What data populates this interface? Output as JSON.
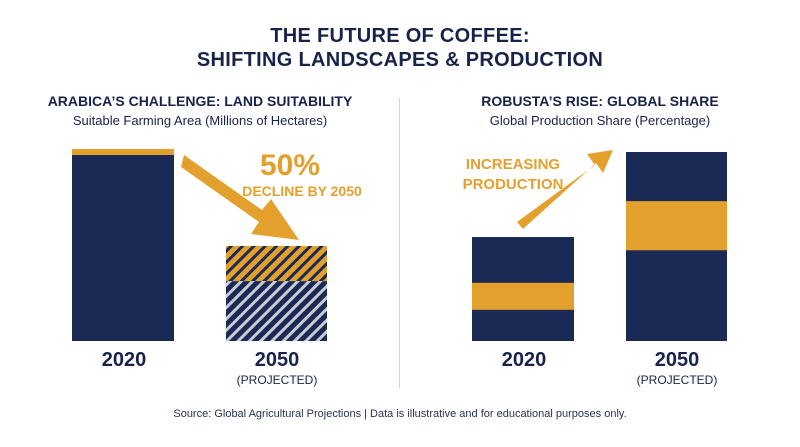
{
  "title_line1": "THE FUTURE OF COFFEE:",
  "title_line2": "SHIFTING LANDSCAPES & PRODUCTION",
  "colors": {
    "navy": "#1b2a55",
    "gold": "#e3a02d",
    "gray": "#c8ccd4"
  },
  "chart_data": [
    {
      "type": "bar",
      "title": "ARABICA’S CHALLENGE: LAND SUITABILITY",
      "subtitle": "Suitable Farming Area (Millions of Hectares)",
      "categories": [
        "2020",
        "2050"
      ],
      "category_notes": [
        "",
        "(PROJECTED)"
      ],
      "values": [
        100,
        50
      ],
      "projected": [
        false,
        true
      ],
      "annotation": {
        "value": "50%",
        "text": "DECLINE BY 2050"
      }
    },
    {
      "type": "bar",
      "title": "ROBUSTA’S RISE: GLOBAL SHARE",
      "subtitle": "Global Production Share (Percentage)",
      "categories": [
        "2020",
        "2050"
      ],
      "category_notes": [
        "",
        "(PROJECTED)"
      ],
      "values": [
        55,
        100
      ],
      "gold_band_share": [
        0.26,
        0.26
      ],
      "annotation": {
        "line1": "INCREASING",
        "line2": "PRODUCTION"
      }
    }
  ],
  "source": "Source: Global Agricultural Projections | Data is illustrative and for educational purposes only."
}
